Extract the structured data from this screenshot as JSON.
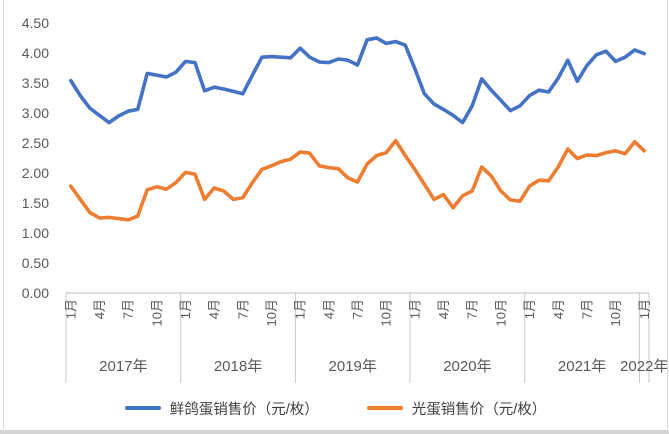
{
  "chart_data": {
    "type": "line",
    "x_axis": "months from 2017-01 to 2022-01, monthly",
    "n_points": 61,
    "ylim": [
      0,
      4.5
    ],
    "grid": false,
    "legend_position": "bottom",
    "y_ticks": [
      "0.00",
      "0.50",
      "1.00",
      "1.50",
      "2.00",
      "2.50",
      "3.00",
      "3.50",
      "4.00",
      "4.50"
    ],
    "x_ticks": [
      {
        "i": 0,
        "label": "1月"
      },
      {
        "i": 3,
        "label": "4月"
      },
      {
        "i": 6,
        "label": "7月"
      },
      {
        "i": 9,
        "label": "10月"
      },
      {
        "i": 12,
        "label": "1月"
      },
      {
        "i": 15,
        "label": "4月"
      },
      {
        "i": 18,
        "label": "7月"
      },
      {
        "i": 21,
        "label": "10月"
      },
      {
        "i": 24,
        "label": "1月"
      },
      {
        "i": 27,
        "label": "4月"
      },
      {
        "i": 30,
        "label": "7月"
      },
      {
        "i": 33,
        "label": "10月"
      },
      {
        "i": 36,
        "label": "1月"
      },
      {
        "i": 39,
        "label": "4月"
      },
      {
        "i": 42,
        "label": "7月"
      },
      {
        "i": 45,
        "label": "10月"
      },
      {
        "i": 48,
        "label": "1月"
      },
      {
        "i": 51,
        "label": "4月"
      },
      {
        "i": 54,
        "label": "7月"
      },
      {
        "i": 57,
        "label": "10月"
      },
      {
        "i": 60,
        "label": "1月"
      }
    ],
    "year_groups": [
      {
        "label": "2017年",
        "start": 0,
        "end": 12
      },
      {
        "label": "2018年",
        "start": 12,
        "end": 24
      },
      {
        "label": "2019年",
        "start": 24,
        "end": 36
      },
      {
        "label": "2020年",
        "start": 36,
        "end": 48
      },
      {
        "label": "2021年",
        "start": 48,
        "end": 60
      },
      {
        "label": "2022年",
        "start": 60,
        "end": 61
      }
    ],
    "series": [
      {
        "name": "鲜鸽蛋销售价（元/枚）",
        "color": "#4472C4",
        "values": [
          3.54,
          3.29,
          3.08,
          2.96,
          2.84,
          2.95,
          3.03,
          3.06,
          3.66,
          3.63,
          3.6,
          3.68,
          3.86,
          3.84,
          3.37,
          3.43,
          3.4,
          3.36,
          3.32,
          3.63,
          3.93,
          3.94,
          3.93,
          3.92,
          4.08,
          3.93,
          3.85,
          3.84,
          3.9,
          3.88,
          3.8,
          4.22,
          4.25,
          4.16,
          4.19,
          4.13,
          3.74,
          3.32,
          3.15,
          3.06,
          2.96,
          2.84,
          3.12,
          3.57,
          3.38,
          3.21,
          3.04,
          3.12,
          3.29,
          3.38,
          3.35,
          3.58,
          3.88,
          3.53,
          3.79,
          3.97,
          4.03,
          3.86,
          3.93,
          4.05,
          3.99
        ]
      },
      {
        "name": "光蛋销售价（元/枚）",
        "color": "#ED7D31",
        "values": [
          1.78,
          1.56,
          1.34,
          1.25,
          1.26,
          1.24,
          1.22,
          1.28,
          1.72,
          1.77,
          1.73,
          1.84,
          2.01,
          1.98,
          1.56,
          1.75,
          1.7,
          1.56,
          1.59,
          1.84,
          2.06,
          2.12,
          2.19,
          2.23,
          2.35,
          2.33,
          2.12,
          2.09,
          2.07,
          1.92,
          1.85,
          2.15,
          2.29,
          2.34,
          2.54,
          2.29,
          2.06,
          1.81,
          1.56,
          1.64,
          1.42,
          1.62,
          1.7,
          2.1,
          1.95,
          1.7,
          1.55,
          1.53,
          1.78,
          1.88,
          1.87,
          2.1,
          2.4,
          2.24,
          2.3,
          2.29,
          2.34,
          2.37,
          2.32,
          2.52,
          2.37
        ]
      }
    ],
    "colors": {
      "axis_text": "#595959",
      "axis_line": "#bfbfbf",
      "divider_line": "#c9c9c9",
      "legend_text": "#404040"
    }
  }
}
